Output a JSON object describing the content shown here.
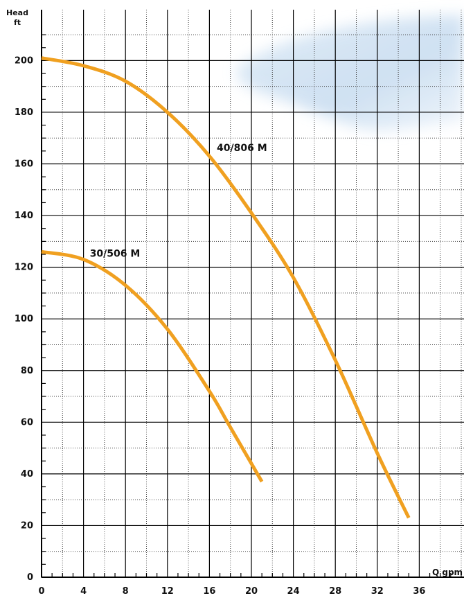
{
  "chart_data": {
    "type": "line",
    "yaxis_title_lines": [
      "Head",
      "ft"
    ],
    "xaxis_title": "Q gpm",
    "xlim": [
      0,
      40
    ],
    "ylim": [
      0,
      210
    ],
    "x_ticks": [
      0,
      4,
      8,
      12,
      16,
      20,
      24,
      28,
      32,
      36
    ],
    "y_ticks": [
      0,
      20,
      40,
      60,
      80,
      100,
      120,
      140,
      160,
      180,
      200
    ],
    "x_minor_step": 2,
    "y_minor_step": 10,
    "grid": true,
    "line_color": "#f0a020",
    "series": [
      {
        "name": "40/806 M",
        "x": [
          0,
          4,
          8,
          12,
          16,
          20,
          24,
          28,
          32,
          35
        ],
        "y": [
          201,
          198,
          192,
          180,
          163,
          141,
          116,
          84,
          48,
          23
        ]
      },
      {
        "name": "30/506 M",
        "x": [
          0,
          4,
          8,
          12,
          16,
          18,
          21
        ],
        "y": [
          126,
          123,
          113,
          96,
          72,
          58,
          37
        ]
      }
    ],
    "series_label_anchor": [
      {
        "x": 16.7,
        "y": 165
      },
      {
        "x": 4.6,
        "y": 124
      }
    ]
  }
}
